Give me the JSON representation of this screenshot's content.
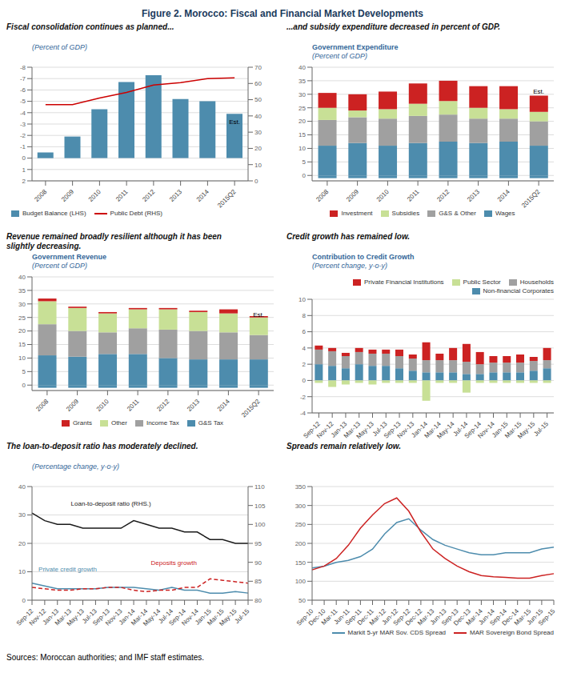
{
  "title": "Figure 2. Morocco: Fiscal and Financial Market Developments",
  "annotations": [
    {
      "text": "Sources: Moroccan authorities; and IMF staff estimates."
    }
  ],
  "chart_data": [
    {
      "type": "bar",
      "title": "Fiscal consolidation continues as planned...",
      "annotations": [
        {
          "text": "(Percent of GDP)"
        },
        {
          "text": "Est.",
          "x": "2015Q2",
          "y": -3.2
        }
      ],
      "categories": [
        "2008",
        "2009",
        "2010",
        "2011",
        "2012",
        "2013",
        "2014",
        "2015Q2"
      ],
      "series": [
        {
          "name": "Budget Balance (LHS)",
          "color": "#4d8cad",
          "values": [
            -0.5,
            -1.9,
            -4.3,
            -6.7,
            -7.3,
            -5.2,
            -5.0,
            -3.9
          ]
        },
        {
          "name": "Public Debt (RHS)",
          "type": "line",
          "axis": "y2",
          "color": "#cc0000",
          "values": [
            47,
            47,
            51,
            54.5,
            59,
            60.5,
            63,
            63.5
          ]
        }
      ],
      "ylim": [
        2,
        -8
      ],
      "yticks": [
        2,
        1,
        0,
        -1,
        -2,
        -3,
        -4,
        -5,
        -6,
        -7,
        -8
      ],
      "y2lim": [
        0,
        70
      ],
      "y2ticks": [
        0,
        10,
        20,
        30,
        40,
        50,
        60,
        70
      ],
      "grid": true,
      "legend": "lower left"
    },
    {
      "type": "bar",
      "title": "...and subsidy expenditure decreased in percent of GDP.",
      "annotations": [
        {
          "text": "Government Expenditure"
        },
        {
          "text": "(Percent of GDP)"
        },
        {
          "text": "Est.",
          "x": "2015Q2",
          "y": 31
        }
      ],
      "categories": [
        "2008",
        "2009",
        "2010",
        "2011",
        "2012",
        "2013",
        "2014",
        "2015Q2"
      ],
      "series": [
        {
          "name": "Wages",
          "color": "#4d8cad",
          "values": [
            11.0,
            12.0,
            11.0,
            12.0,
            12.5,
            12.0,
            12.5,
            11.0
          ]
        },
        {
          "name": "G&S & Other",
          "color": "#a0a0a0",
          "values": [
            9.5,
            9.5,
            10.0,
            10.0,
            10.0,
            9.0,
            8.5,
            9.0
          ]
        },
        {
          "name": "Subsidies",
          "color": "#c8e096",
          "values": [
            4.5,
            2.5,
            3.5,
            4.5,
            5.0,
            4.0,
            3.5,
            3.5
          ]
        },
        {
          "name": "Investment",
          "color": "#cc2222",
          "values": [
            5.5,
            6.0,
            6.5,
            7.5,
            7.5,
            8.0,
            8.5,
            6.0
          ]
        },
        {
          "color": "#4d8cad",
          "values": [
            -1.0,
            -1.0,
            -1.0,
            -1.0,
            -1.0,
            -1.0,
            -1.0,
            -1.0
          ]
        }
      ],
      "stacked": true,
      "ylim": [
        -2,
        40
      ],
      "yticks": [
        0,
        5,
        10,
        15,
        20,
        25,
        30,
        35,
        40
      ],
      "grid": true,
      "legend": "lower center"
    },
    {
      "type": "bar",
      "title": "Revenue remained broadly resilient although it has been\nslightly decreasing.",
      "annotations": [
        {
          "text": "Government Revenue"
        },
        {
          "text": "(Percent of GDP)"
        },
        {
          "text": "Est.",
          "x": "2015Q2",
          "y": 26
        }
      ],
      "categories": [
        "2008",
        "2009",
        "2010",
        "2011",
        "2012",
        "2013",
        "2014",
        "2015Q2"
      ],
      "series": [
        {
          "name": "G&S Tax",
          "color": "#4d8cad",
          "values": [
            11.0,
            10.5,
            11.5,
            11.5,
            10.0,
            9.5,
            9.5,
            9.5
          ]
        },
        {
          "name": "Income Tax",
          "color": "#a0a0a0",
          "values": [
            11.5,
            9.5,
            8.0,
            9.5,
            10.5,
            10.5,
            10.0,
            9.0
          ]
        },
        {
          "name": "Other",
          "color": "#c8e096",
          "values": [
            8.5,
            8.5,
            7.0,
            7.0,
            7.5,
            7.0,
            7.0,
            6.5
          ]
        },
        {
          "name": "Grants",
          "color": "#cc2222",
          "values": [
            1.0,
            0.5,
            0.5,
            0.5,
            0.5,
            0.5,
            1.5,
            0.5
          ]
        },
        {
          "color": "#4d8cad",
          "values": [
            -1.0,
            -1.0,
            -1.0,
            -1.0,
            -1.0,
            -1.0,
            -1.0,
            -1.0
          ]
        }
      ],
      "stacked": true,
      "ylim": [
        -2,
        40
      ],
      "yticks": [
        0,
        5,
        10,
        15,
        20,
        25,
        30,
        35,
        40
      ],
      "grid": true,
      "legend": "lower center"
    },
    {
      "type": "bar",
      "title": "Credit growth has remained low.",
      "annotations": [
        {
          "text": "Contribution to Credit Growth"
        },
        {
          "text": "(Percent change, y-o-y)"
        }
      ],
      "categories": [
        "Sep-12",
        "Nov-12",
        "Jan-13",
        "Mar-13",
        "May-13",
        "Jul-13",
        "Sep-13",
        "Nov-13",
        "Jan-14",
        "Mar-14",
        "May-14",
        "Jul-14",
        "Sep-14",
        "Nov-14",
        "Jan-15",
        "Mar-15",
        "May-15",
        "Jul-15"
      ],
      "series": [
        {
          "name": "Non-financial Corporates",
          "color": "#4d8cad",
          "values": [
            2.0,
            1.8,
            1.5,
            2.0,
            1.8,
            1.8,
            1.5,
            1.2,
            1.0,
            1.0,
            1.0,
            0.8,
            0.8,
            1.0,
            1.0,
            1.0,
            1.2,
            1.5
          ]
        },
        {
          "name": "Households",
          "color": "#a0a0a0",
          "values": [
            1.8,
            1.8,
            1.5,
            1.5,
            1.5,
            1.5,
            1.5,
            1.5,
            1.5,
            1.5,
            1.5,
            1.5,
            1.2,
            1.2,
            1.2,
            1.2,
            1.2,
            1.0
          ]
        },
        {
          "name": "Public Sector",
          "color": "#c8e096",
          "values": [
            -0.3,
            -0.8,
            -0.5,
            -0.3,
            -0.5,
            -0.3,
            -0.3,
            -0.3,
            -2.5,
            -0.3,
            -0.3,
            -1.5,
            -0.3,
            -0.3,
            -0.3,
            -0.3,
            -0.3,
            -0.3
          ]
        },
        {
          "name": "Private Financial Institutions",
          "color": "#cc2222",
          "values": [
            0.5,
            0.4,
            0.4,
            0.5,
            0.5,
            0.5,
            0.8,
            0.5,
            2.2,
            0.8,
            1.5,
            2.2,
            1.5,
            0.8,
            0.8,
            1.0,
            0.5,
            1.5
          ]
        }
      ],
      "stacked": true,
      "ylim": [
        -4,
        10
      ],
      "yticks": [
        -4,
        -2,
        0,
        2,
        4,
        6,
        8,
        10
      ],
      "grid": true,
      "legend": "upper right"
    },
    {
      "type": "line",
      "title": "The loan-to-deposit ratio has moderately declined.",
      "annotations": [
        {
          "text": "(Percentage change, y-o-y)"
        }
      ],
      "categories": [
        "Sep-12",
        "Nov-12",
        "Jan-13",
        "Mar-13",
        "May-13",
        "Jul-13",
        "Sep-13",
        "Nov-13",
        "Jan-14",
        "Mar-14",
        "May-14",
        "Jul-14",
        "Sep-14",
        "Nov-14",
        "Jan-15",
        "Mar-15",
        "May-15",
        "Jul-15"
      ],
      "series": [
        {
          "name": "Private credit growth",
          "color": "#4d8cad",
          "values": [
            6.0,
            5.0,
            4.0,
            4.0,
            4.0,
            4.0,
            4.5,
            4.5,
            4.5,
            4.0,
            3.5,
            4.5,
            3.5,
            3.5,
            2.5,
            2.5,
            3.0,
            2.5
          ]
        },
        {
          "name": "Deposits growth",
          "color": "#cc2222",
          "line_style": "dashed",
          "values": [
            4.5,
            4.0,
            3.5,
            3.5,
            4.0,
            4.0,
            4.5,
            4.5,
            3.5,
            3.0,
            3.5,
            3.5,
            4.5,
            4.5,
            7.5,
            7.0,
            6.5,
            6.0
          ]
        },
        {
          "name": "Loan-to-deposit ratio (RHS.)",
          "axis": "y2",
          "color": "#1a1a1a",
          "values": [
            103,
            101,
            100,
            100,
            99,
            99,
            99,
            99,
            101,
            100,
            99,
            99,
            98,
            98,
            96,
            96,
            95,
            95
          ]
        }
      ],
      "ylim": [
        0,
        40
      ],
      "yticks": [
        0,
        10,
        20,
        30,
        40
      ],
      "y2lim": [
        80,
        110
      ],
      "y2ticks": [
        80,
        85,
        90,
        95,
        100,
        105,
        110
      ],
      "grid": true
    },
    {
      "type": "line",
      "title": "Spreads remain relatively low.",
      "categories": [
        "Sep-10",
        "Dec-10",
        "Mar-11",
        "Jun-11",
        "Sep-11",
        "Dec-11",
        "Mar-12",
        "Jun-12",
        "Sep-12",
        "Dec-12",
        "Mar-13",
        "Jun-13",
        "Sep-13",
        "Dec-13",
        "Mar-14",
        "Jun-14",
        "Sep-14",
        "Dec-14",
        "Mar-15",
        "Jun-15",
        "Sep-15"
      ],
      "series": [
        {
          "name": "Markit 5-yr MAR Sov. CDS Spread",
          "color": "#4d8cad",
          "values": [
            135,
            140,
            150,
            155,
            165,
            185,
            225,
            255,
            265,
            235,
            210,
            195,
            185,
            175,
            170,
            170,
            175,
            175,
            175,
            185,
            190
          ]
        },
        {
          "name": "MAR Sovereign Bond Spread",
          "color": "#cc2222",
          "values": [
            130,
            140,
            160,
            195,
            240,
            275,
            305,
            320,
            285,
            230,
            185,
            160,
            140,
            125,
            115,
            112,
            110,
            108,
            108,
            115,
            120
          ]
        }
      ],
      "ylim": [
        50,
        350
      ],
      "yticks": [
        50,
        100,
        150,
        200,
        250,
        300,
        350
      ],
      "grid": true,
      "legend": "lower right"
    }
  ]
}
